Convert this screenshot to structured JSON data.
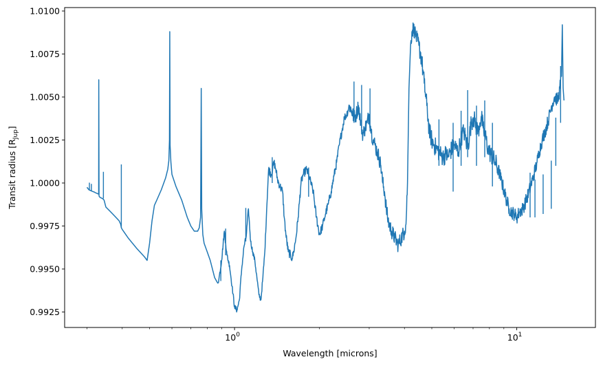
{
  "chart_data": {
    "type": "line",
    "title": "",
    "xlabel": "Wavelength [microns]",
    "ylabel_main": "Transit radius [R",
    "ylabel_sub": "Jup",
    "ylabel_end": "]",
    "xscale": "log",
    "xlim": [
      0.25,
      19.0
    ],
    "ylim": [
      0.9916,
      1.0102
    ],
    "x_ticks": [
      {
        "value": 1,
        "base": "10",
        "exp": "0"
      },
      {
        "value": 10,
        "base": "10",
        "exp": "1"
      }
    ],
    "x_minor_ticks": [
      0.3,
      0.4,
      0.5,
      0.6,
      0.7,
      0.8,
      0.9,
      2,
      3,
      4,
      5,
      6,
      7,
      8,
      9
    ],
    "y_ticks": [
      0.9925,
      0.995,
      0.9975,
      1.0,
      1.0025,
      1.005,
      1.0075,
      1.01
    ],
    "y_tick_labels": [
      "0.9925",
      "0.9950",
      "0.9975",
      "1.0000",
      "1.0025",
      "1.0050",
      "1.0075",
      "1.0100"
    ],
    "grid": false,
    "series": [
      {
        "color": "#1f77b4",
        "x": [
          0.3,
          0.305,
          0.31,
          0.315,
          0.318,
          0.32,
          0.325,
          0.33,
          0.3303,
          0.331,
          0.332,
          0.335,
          0.34,
          0.343,
          0.345,
          0.35,
          0.36,
          0.37,
          0.38,
          0.39,
          0.395,
          0.397,
          0.4,
          0.42,
          0.45,
          0.48,
          0.49,
          0.5,
          0.51,
          0.52,
          0.53,
          0.55,
          0.57,
          0.58,
          0.585,
          0.588,
          0.5895,
          0.591,
          0.595,
          0.6,
          0.62,
          0.65,
          0.68,
          0.7,
          0.72,
          0.74,
          0.75,
          0.758,
          0.762,
          0.765,
          0.768,
          0.772,
          0.78,
          0.8,
          0.82,
          0.85,
          0.87,
          0.88,
          0.9,
          0.92,
          0.93,
          0.94,
          0.96,
          0.98,
          1.0,
          1.02,
          1.04,
          1.06,
          1.08,
          1.1,
          1.12,
          1.14,
          1.16,
          1.18,
          1.2,
          1.22,
          1.24,
          1.26,
          1.28,
          1.3,
          1.32,
          1.35,
          1.38,
          1.4,
          1.42,
          1.45,
          1.48,
          1.5,
          1.52,
          1.55,
          1.58,
          1.6,
          1.62,
          1.65,
          1.68,
          1.7,
          1.72,
          1.75,
          1.8,
          1.85,
          1.9,
          1.95,
          2.0,
          2.05,
          2.1,
          2.15,
          2.2,
          2.25,
          2.3,
          2.35,
          2.4,
          2.45,
          2.5,
          2.55,
          2.6,
          2.65,
          2.7,
          2.75,
          2.8,
          2.85,
          2.9,
          2.95,
          3.0,
          3.05,
          3.1,
          3.15,
          3.2,
          3.25,
          3.3,
          3.35,
          3.4,
          3.45,
          3.5,
          3.6,
          3.7,
          3.8,
          3.9,
          4.0,
          4.05,
          4.1,
          4.15,
          4.2,
          4.25,
          4.3,
          4.35,
          4.4,
          4.5,
          4.6,
          4.7,
          4.8,
          4.9,
          5.0,
          5.1,
          5.2,
          5.3,
          5.4,
          5.5,
          5.6,
          5.7,
          5.8,
          5.9,
          6.0,
          6.1,
          6.2,
          6.3,
          6.4,
          6.5,
          6.6,
          6.7,
          6.8,
          6.9,
          7.0,
          7.1,
          7.2,
          7.3,
          7.4,
          7.5,
          7.6,
          7.7,
          7.8,
          7.9,
          8.0,
          8.2,
          8.4,
          8.6,
          8.8,
          9.0,
          9.2,
          9.4,
          9.6,
          9.8,
          10.0,
          10.2,
          10.5,
          10.8,
          11.0,
          11.2,
          11.5,
          11.8,
          12.0,
          12.3,
          12.6,
          13.0,
          13.3,
          13.6,
          14.0,
          14.2,
          14.4,
          14.5,
          14.6,
          14.7
        ],
        "y": [
          0.99975,
          0.9996,
          0.99955,
          0.9995,
          0.99948,
          0.99945,
          0.9994,
          0.99935,
          1.006,
          0.99925,
          0.9992,
          0.99915,
          0.9991,
          0.99905,
          0.999,
          0.9986,
          0.9984,
          0.9982,
          0.998,
          0.9978,
          0.9976,
          0.9974,
          0.9973,
          0.9968,
          0.9962,
          0.9957,
          0.9955,
          0.9965,
          0.9978,
          0.9987,
          0.999,
          0.9996,
          1.0003,
          1.0008,
          1.0013,
          1.0025,
          1.0088,
          1.0022,
          1.0012,
          1.0005,
          0.9998,
          0.999,
          0.998,
          0.9975,
          0.9972,
          0.9972,
          0.9974,
          0.998,
          1.0055,
          0.9985,
          0.9978,
          0.997,
          0.9965,
          0.996,
          0.9955,
          0.9945,
          0.9942,
          0.9944,
          0.9955,
          0.9972,
          0.9965,
          0.9958,
          0.9952,
          0.994,
          0.9928,
          0.9926,
          0.9932,
          0.995,
          0.9963,
          0.9969,
          0.9985,
          0.9966,
          0.996,
          0.9955,
          0.9945,
          0.9935,
          0.9932,
          0.9945,
          0.996,
          0.9985,
          1.0008,
          1.0005,
          1.0012,
          1.0008,
          1.0002,
          0.9998,
          0.9995,
          0.998,
          0.997,
          0.996,
          0.9958,
          0.9956,
          0.996,
          0.9968,
          0.998,
          0.999,
          1.0,
          1.0005,
          1.0008,
          1.0002,
          0.9995,
          0.998,
          0.997,
          0.9975,
          0.9982,
          0.9988,
          0.9995,
          1.0004,
          1.0012,
          1.0022,
          1.003,
          1.0038,
          1.004,
          1.0045,
          1.0042,
          1.0038,
          1.004,
          1.0045,
          1.0035,
          1.0028,
          1.0032,
          1.0035,
          1.004,
          1.003,
          1.0025,
          1.0022,
          1.0018,
          1.0015,
          1.001,
          1.0,
          0.9995,
          0.9985,
          0.9978,
          0.9972,
          0.9968,
          0.9964,
          0.9968,
          0.9972,
          0.9976,
          1.0,
          1.0055,
          1.0078,
          1.0088,
          1.009,
          1.0088,
          1.0085,
          1.008,
          1.0072,
          1.0058,
          1.0045,
          1.003,
          1.0025,
          1.0022,
          1.002,
          1.0018,
          1.0016,
          1.0015,
          1.0017,
          1.0015,
          1.0018,
          1.002,
          1.0022,
          1.002,
          1.0018,
          1.0023,
          1.0028,
          1.003,
          1.0025,
          1.002,
          1.0028,
          1.0035,
          1.0038,
          1.0036,
          1.0032,
          1.003,
          1.0035,
          1.0038,
          1.0032,
          1.0028,
          1.0025,
          1.002,
          1.0018,
          1.0015,
          1.0012,
          1.0008,
          1.0002,
          0.9996,
          0.999,
          0.9985,
          0.9983,
          0.9982,
          0.998,
          0.9983,
          0.9985,
          0.999,
          0.9994,
          0.9998,
          1.0005,
          1.0012,
          1.0018,
          1.0025,
          1.003,
          1.0038,
          1.0045,
          1.005,
          1.0048,
          1.0055,
          1.0062,
          1.0092,
          1.0055,
          1.0048
        ]
      }
    ],
    "spikes": [
      {
        "x": 0.306,
        "y0": 0.9996,
        "y1": 1.00002
      },
      {
        "x": 0.311,
        "y0": 0.99955,
        "y1": 0.99995
      },
      {
        "x": 0.343,
        "y0": 0.9991,
        "y1": 1.00065
      },
      {
        "x": 0.397,
        "y0": 0.9974,
        "y1": 1.00108
      },
      {
        "x": 0.894,
        "y0": 0.9943,
        "y1": 0.9955
      },
      {
        "x": 0.93,
        "y0": 0.9958,
        "y1": 0.99735
      },
      {
        "x": 1.096,
        "y0": 0.9966,
        "y1": 0.99855
      },
      {
        "x": 1.36,
        "y0": 1.0,
        "y1": 1.0015
      },
      {
        "x": 1.83,
        "y0": 0.9992,
        "y1": 1.0009
      },
      {
        "x": 2.65,
        "y0": 1.0035,
        "y1": 1.0059
      },
      {
        "x": 2.82,
        "y0": 1.0032,
        "y1": 1.0057
      },
      {
        "x": 3.02,
        "y0": 1.003,
        "y1": 1.0055
      },
      {
        "x": 5.3,
        "y0": 1.001,
        "y1": 1.0037
      },
      {
        "x": 5.95,
        "y0": 0.9995,
        "y1": 1.0035
      },
      {
        "x": 6.35,
        "y0": 1.001,
        "y1": 1.0042
      },
      {
        "x": 6.7,
        "y0": 1.0015,
        "y1": 1.0054
      },
      {
        "x": 7.2,
        "y0": 1.001,
        "y1": 1.0045
      },
      {
        "x": 7.7,
        "y0": 1.0015,
        "y1": 1.0048
      },
      {
        "x": 8.2,
        "y0": 0.9998,
        "y1": 1.0035
      },
      {
        "x": 11.15,
        "y0": 0.998,
        "y1": 1.0006
      },
      {
        "x": 11.6,
        "y0": 0.998,
        "y1": 1.0002
      },
      {
        "x": 12.4,
        "y0": 0.9982,
        "y1": 1.0005
      },
      {
        "x": 13.25,
        "y0": 0.9985,
        "y1": 1.0013
      },
      {
        "x": 13.75,
        "y0": 1.001,
        "y1": 1.0038
      },
      {
        "x": 14.3,
        "y0": 1.0035,
        "y1": 1.0068
      }
    ]
  }
}
